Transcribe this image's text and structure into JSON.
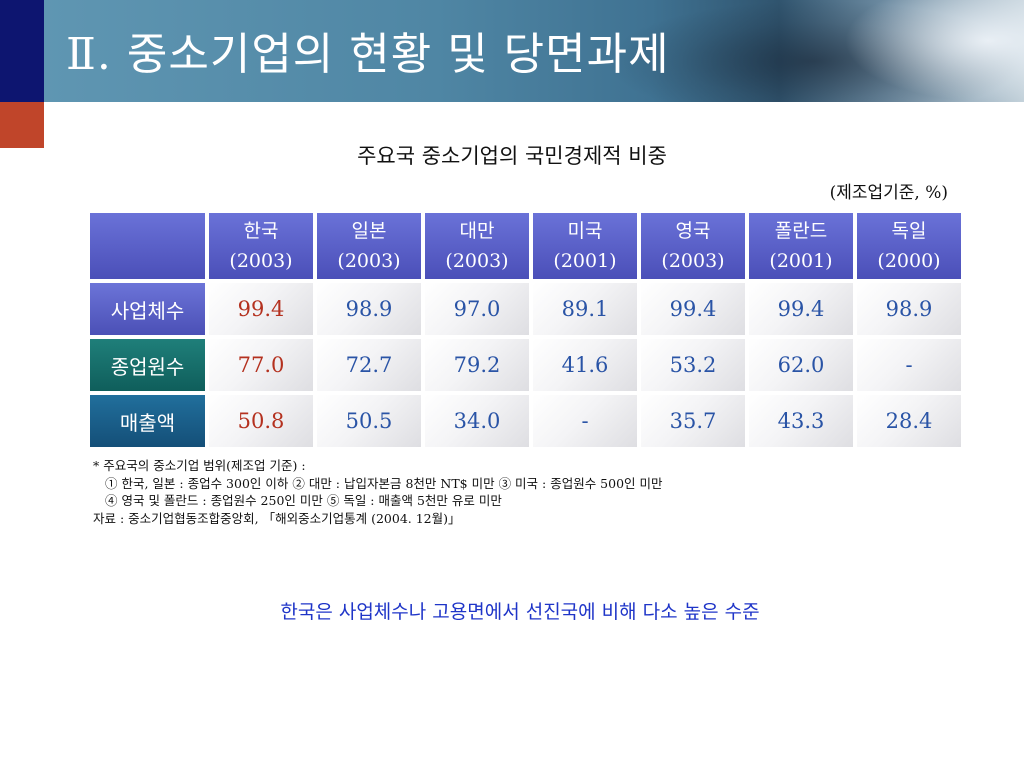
{
  "slide": {
    "title": "Ⅱ. 중소기업의 현황 및 당면과제",
    "chart_title": "주요국 중소기업의 국민경제적 비중",
    "unit_note": "(제조업기준, %)",
    "conclusion": "한국은 사업체수나 고용면에서 선진국에 비해 다소 높은 수준"
  },
  "table": {
    "columns": [
      {
        "name": "한국",
        "year": "(2003)"
      },
      {
        "name": "일본",
        "year": "(2003)"
      },
      {
        "name": "대만",
        "year": "(2003)"
      },
      {
        "name": "미국",
        "year": "(2001)"
      },
      {
        "name": "영국",
        "year": "(2003)"
      },
      {
        "name": "폴란드",
        "year": "(2001)"
      },
      {
        "name": "독일",
        "year": "(2000)"
      }
    ],
    "rows": [
      {
        "label": "사업체수",
        "values": [
          "99.4",
          "98.9",
          "97.0",
          "89.1",
          "99.4",
          "99.4",
          "98.9"
        ]
      },
      {
        "label": "종업원수",
        "values": [
          "77.0",
          "72.7",
          "79.2",
          "41.6",
          "53.2",
          "62.0",
          "-"
        ]
      },
      {
        "label": "매출액",
        "values": [
          "50.8",
          "50.5",
          "34.0",
          "-",
          "35.7",
          "43.3",
          "28.4"
        ]
      }
    ]
  },
  "footnote": {
    "line1": "* 주요국의 중소기업 범위(제조업 기준) :",
    "line2": "① 한국, 일본 : 종업수 300인 이하    ② 대만 : 납입자본금 8천만 NT$ 미만    ③ 미국 : 종업원수 500인 미만",
    "line3": "④ 영국 및 폴란드 : 종업원수 250인 미만    ⑤ 독일 : 매출액 5천만 유로 미만",
    "line4": "자료 : 중소기업협동조합중앙회, 「해외중소기업통계 (2004. 12월)」"
  },
  "colors": {
    "header_purple": "#5a60c8",
    "row_teal": "#137a74",
    "row_blue": "#1d6596",
    "korea_value": "#b4311f",
    "value_blue": "#2a54a6",
    "conclusion_blue": "#1f35c8",
    "accent_navy": "#0d1570",
    "accent_red": "#c0452a"
  }
}
